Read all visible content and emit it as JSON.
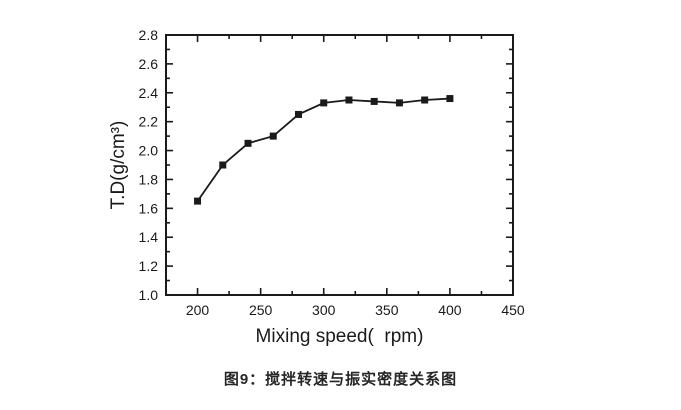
{
  "figure": {
    "caption": "图9：搅拌转速与振实密度关系图",
    "caption_color": "#262626",
    "background": "#ffffff"
  },
  "chart_data": {
    "type": "line",
    "title": "",
    "xlabel": "Mixing speed(  rpm)",
    "ylabel": "T.D(g/cm³)",
    "x": [
      200,
      220,
      240,
      260,
      280,
      300,
      320,
      340,
      360,
      380,
      400
    ],
    "y": [
      1.65,
      1.9,
      2.05,
      2.1,
      2.25,
      2.33,
      2.35,
      2.34,
      2.33,
      2.35,
      2.36
    ],
    "marker": "filled-square",
    "marker_size_px": 7,
    "line_color": "#1a1a1a",
    "xlim": [
      175,
      450
    ],
    "ylim": [
      1.0,
      2.8
    ],
    "xticks": [
      200,
      250,
      300,
      350,
      400,
      450
    ],
    "yticks": [
      1.0,
      1.2,
      1.4,
      1.6,
      1.8,
      2.0,
      2.2,
      2.4,
      2.6,
      2.8
    ],
    "x_minor_step": 25,
    "y_minor_step": 0.1,
    "tick_direction": "in",
    "box": true,
    "grid": false,
    "legend": "none"
  }
}
